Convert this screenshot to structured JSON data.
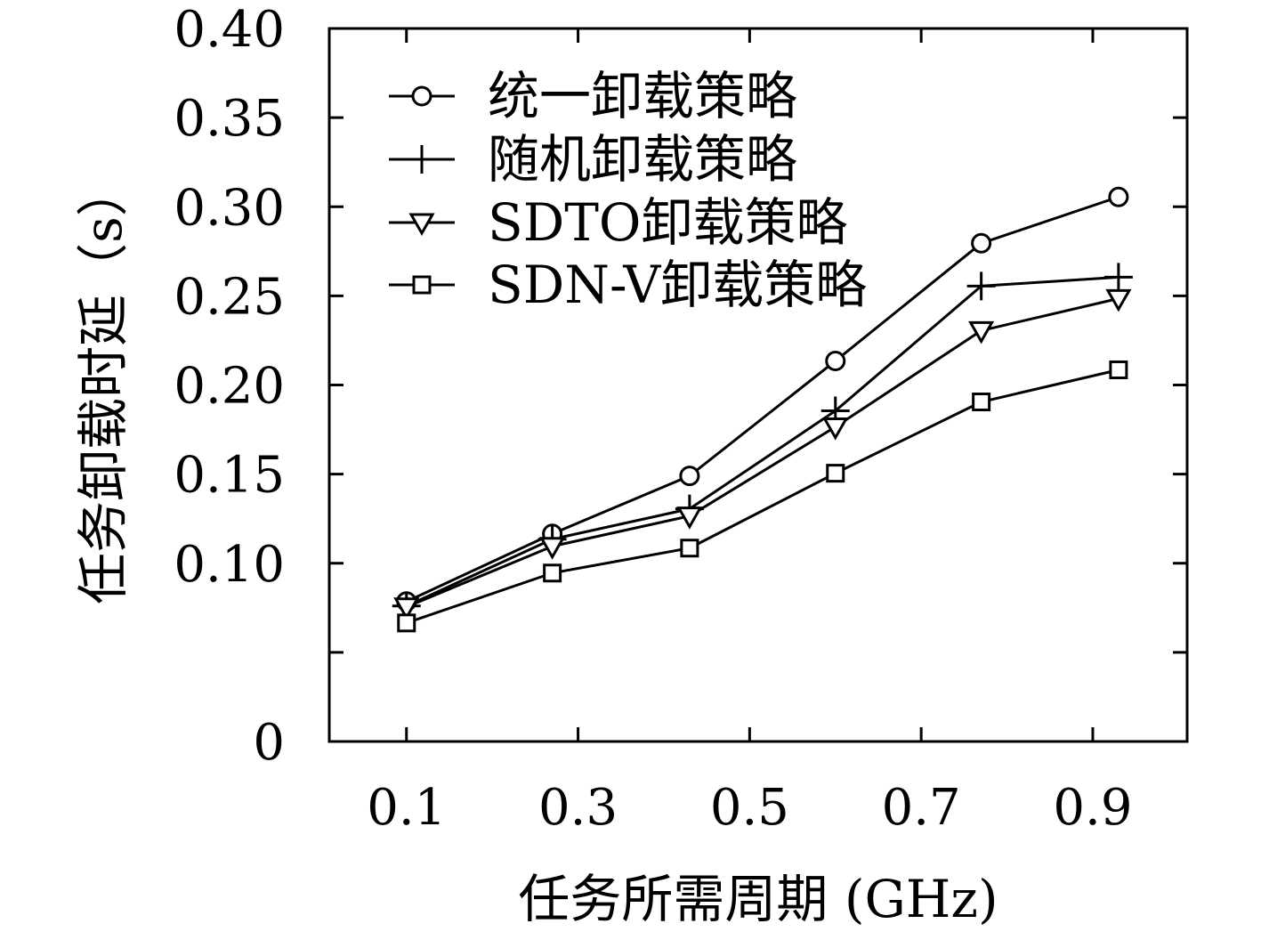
{
  "chart_data": {
    "type": "line",
    "xlabel": "任务所需周期 (GHz)",
    "ylabel": "任务卸载时延（s）",
    "x": [
      0.1,
      0.27,
      0.43,
      0.6,
      0.77,
      0.93
    ],
    "xlim": [
      0.01,
      1.01
    ],
    "ylim": [
      0,
      0.4
    ],
    "xticks": [
      0.1,
      0.3,
      0.5,
      0.7,
      0.9
    ],
    "xtick_labels": [
      "0.1",
      "0.3",
      "0.5",
      "0.7",
      "0.9"
    ],
    "yticks": [
      0,
      0.05,
      0.1,
      0.15,
      0.2,
      0.25,
      0.3,
      0.35,
      0.4
    ],
    "ytick_labels": [
      "0",
      "",
      "0.10",
      "0.15",
      "0.20",
      "0.25",
      "0.30",
      "0.35",
      "0.40"
    ],
    "legend_position": "top-left",
    "grid": false,
    "series": [
      {
        "name": "统一卸载策略",
        "marker": "circle",
        "values": [
          0.0785,
          0.1165,
          0.149,
          0.2135,
          0.2795,
          0.3055
        ]
      },
      {
        "name": "随机卸载策略",
        "marker": "plus",
        "values": [
          0.076,
          0.1135,
          0.1305,
          0.1855,
          0.2555,
          0.2605
        ]
      },
      {
        "name": "SDTO卸载策略",
        "marker": "triangle-down",
        "values": [
          0.0755,
          0.1095,
          0.1265,
          0.1765,
          0.2305,
          0.2485
        ]
      },
      {
        "name": "SDN-V卸载策略",
        "marker": "square",
        "values": [
          0.0665,
          0.0945,
          0.1085,
          0.1505,
          0.1905,
          0.2085
        ]
      }
    ]
  }
}
